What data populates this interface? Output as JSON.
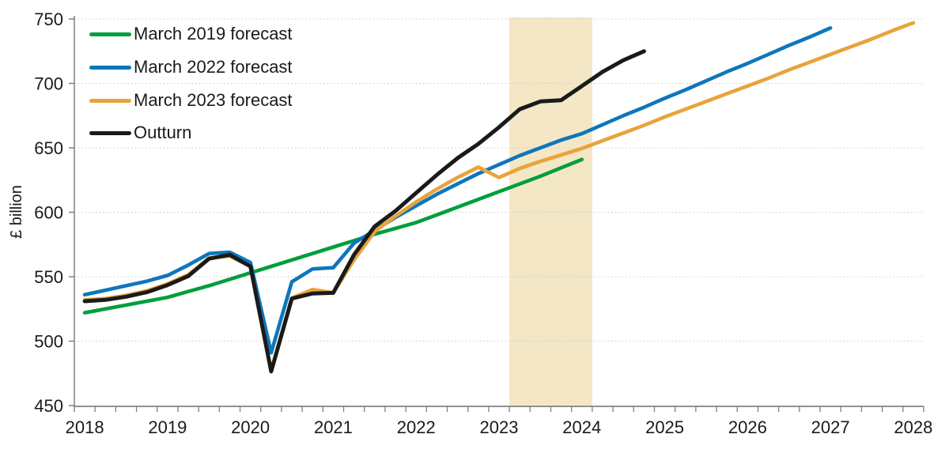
{
  "chart_data": {
    "type": "line",
    "title": "",
    "ylabel": "£ billion",
    "ylim": [
      450,
      750
    ],
    "yticks": [
      450,
      500,
      550,
      600,
      650,
      700,
      750
    ],
    "xticks_years": [
      2018,
      2019,
      2020,
      2021,
      2022,
      2023,
      2024,
      2025,
      2026,
      2027,
      2028
    ],
    "x_start": "2018 Q1",
    "x_frequency": "quarterly",
    "grid": "dotted horizontal gridlines",
    "legend_position": "top-left",
    "axis_color": "#808080",
    "grid_color": "#c9c9c9",
    "text_color": "#1a1a1a",
    "highlight_band": {
      "covers": "2023 Q2 to 2024 Q1",
      "start_quarter_index": 20.5,
      "end_quarter_index": 24.5,
      "color": "#F4E7C5"
    },
    "series": [
      {
        "name": "March 2019 forecast",
        "color": "#009E3D",
        "start_quarter_index": 0,
        "values": [
          522,
          525,
          528,
          531,
          534,
          538.5,
          543,
          548,
          553,
          558,
          563,
          568,
          573,
          578,
          583,
          587.5,
          592,
          598,
          604,
          610,
          616,
          622,
          628,
          634.5,
          641
        ]
      },
      {
        "name": "March 2022 forecast",
        "color": "#0E76BB",
        "start_quarter_index": 0,
        "values": [
          536,
          539.5,
          543,
          546.5,
          551,
          559,
          568,
          569,
          561,
          491,
          546,
          556,
          557,
          576,
          586,
          596,
          605,
          614,
          622,
          630,
          637,
          644,
          650,
          656,
          661,
          668,
          675,
          681.5,
          688.5,
          695,
          702,
          709,
          715.5,
          722.5,
          729.5,
          736,
          743
        ]
      },
      {
        "name": "March 2023 forecast",
        "color": "#E8A33B",
        "start_quarter_index": 0,
        "values": [
          532,
          533,
          535.5,
          539,
          544.5,
          551.5,
          564.5,
          566,
          558,
          477,
          533.5,
          540,
          537.5,
          563,
          585,
          597,
          608,
          618,
          627,
          635,
          627,
          634,
          639.5,
          644.5,
          649.5,
          655.5,
          661.5,
          667.5,
          674,
          680,
          686,
          692,
          698,
          704,
          710.5,
          716.5,
          722.5,
          728.5,
          734.5,
          741,
          747
        ]
      },
      {
        "name": "Outturn",
        "color": "#1A1A1A",
        "start_quarter_index": 0,
        "values": [
          531,
          532,
          534.5,
          538,
          543.5,
          550.5,
          564,
          567,
          558,
          476.5,
          533,
          537,
          537.5,
          567,
          589,
          601,
          615,
          629,
          642,
          653,
          666,
          680,
          686,
          687,
          698,
          709,
          718,
          725
        ]
      }
    ]
  },
  "legend": {
    "items": [
      "March 2019 forecast",
      "March 2022 forecast",
      "March 2023 forecast",
      "Outturn"
    ]
  }
}
